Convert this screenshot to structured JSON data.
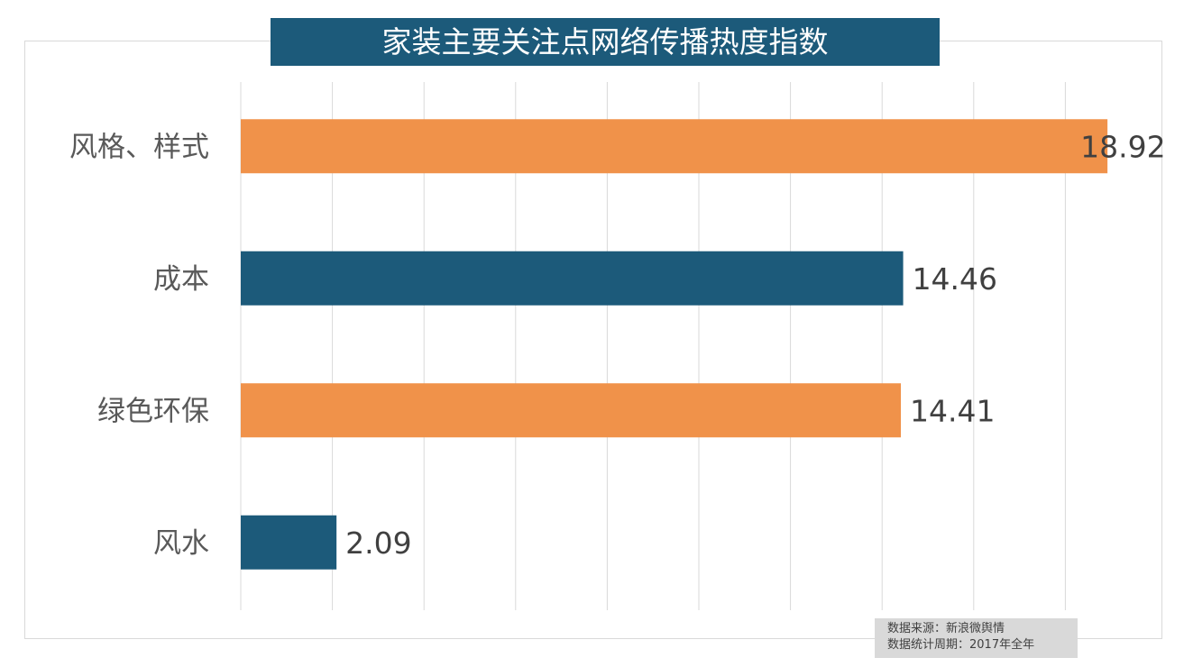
{
  "chart_data": {
    "type": "bar",
    "orientation": "horizontal",
    "title": "家装主要关注点网络传播热度指数",
    "categories": [
      "风格、样式",
      "成本",
      "绿色环保",
      "风水"
    ],
    "values": [
      18.92,
      14.46,
      14.41,
      2.09
    ],
    "data_labels": [
      "18.92",
      "14.46",
      "14.41",
      "2.09"
    ],
    "bar_colors": [
      "#f0924a",
      "#1c5a7a",
      "#f0924a",
      "#1c5a7a"
    ],
    "xlim": [
      0,
      20
    ],
    "x_gridlines": [
      0,
      2,
      4,
      6,
      8,
      10,
      12,
      14,
      16,
      18
    ],
    "grid": true,
    "legend": "none",
    "xlabel": "",
    "ylabel": ""
  },
  "colors": {
    "title_bg": "#1c5a7a",
    "accent_orange": "#f0924a",
    "accent_blue": "#1c5a7a"
  },
  "source": {
    "line1": "数据来源：新浪微舆情",
    "line2": "数据统计周期：2017年全年"
  }
}
